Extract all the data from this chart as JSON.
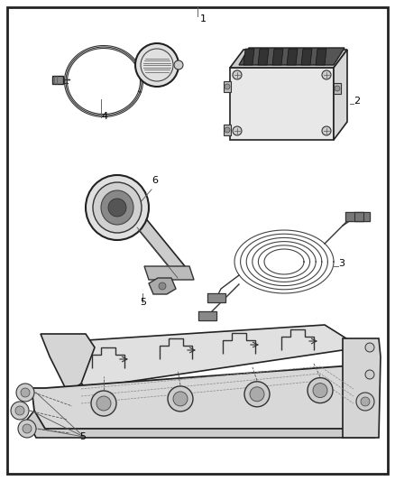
{
  "background_color": "#ffffff",
  "border_color": "#111111",
  "border_linewidth": 2.0,
  "fig_width": 4.38,
  "fig_height": 5.33,
  "dpi": 100,
  "label_fontsize": 8,
  "line_color": "#222222"
}
